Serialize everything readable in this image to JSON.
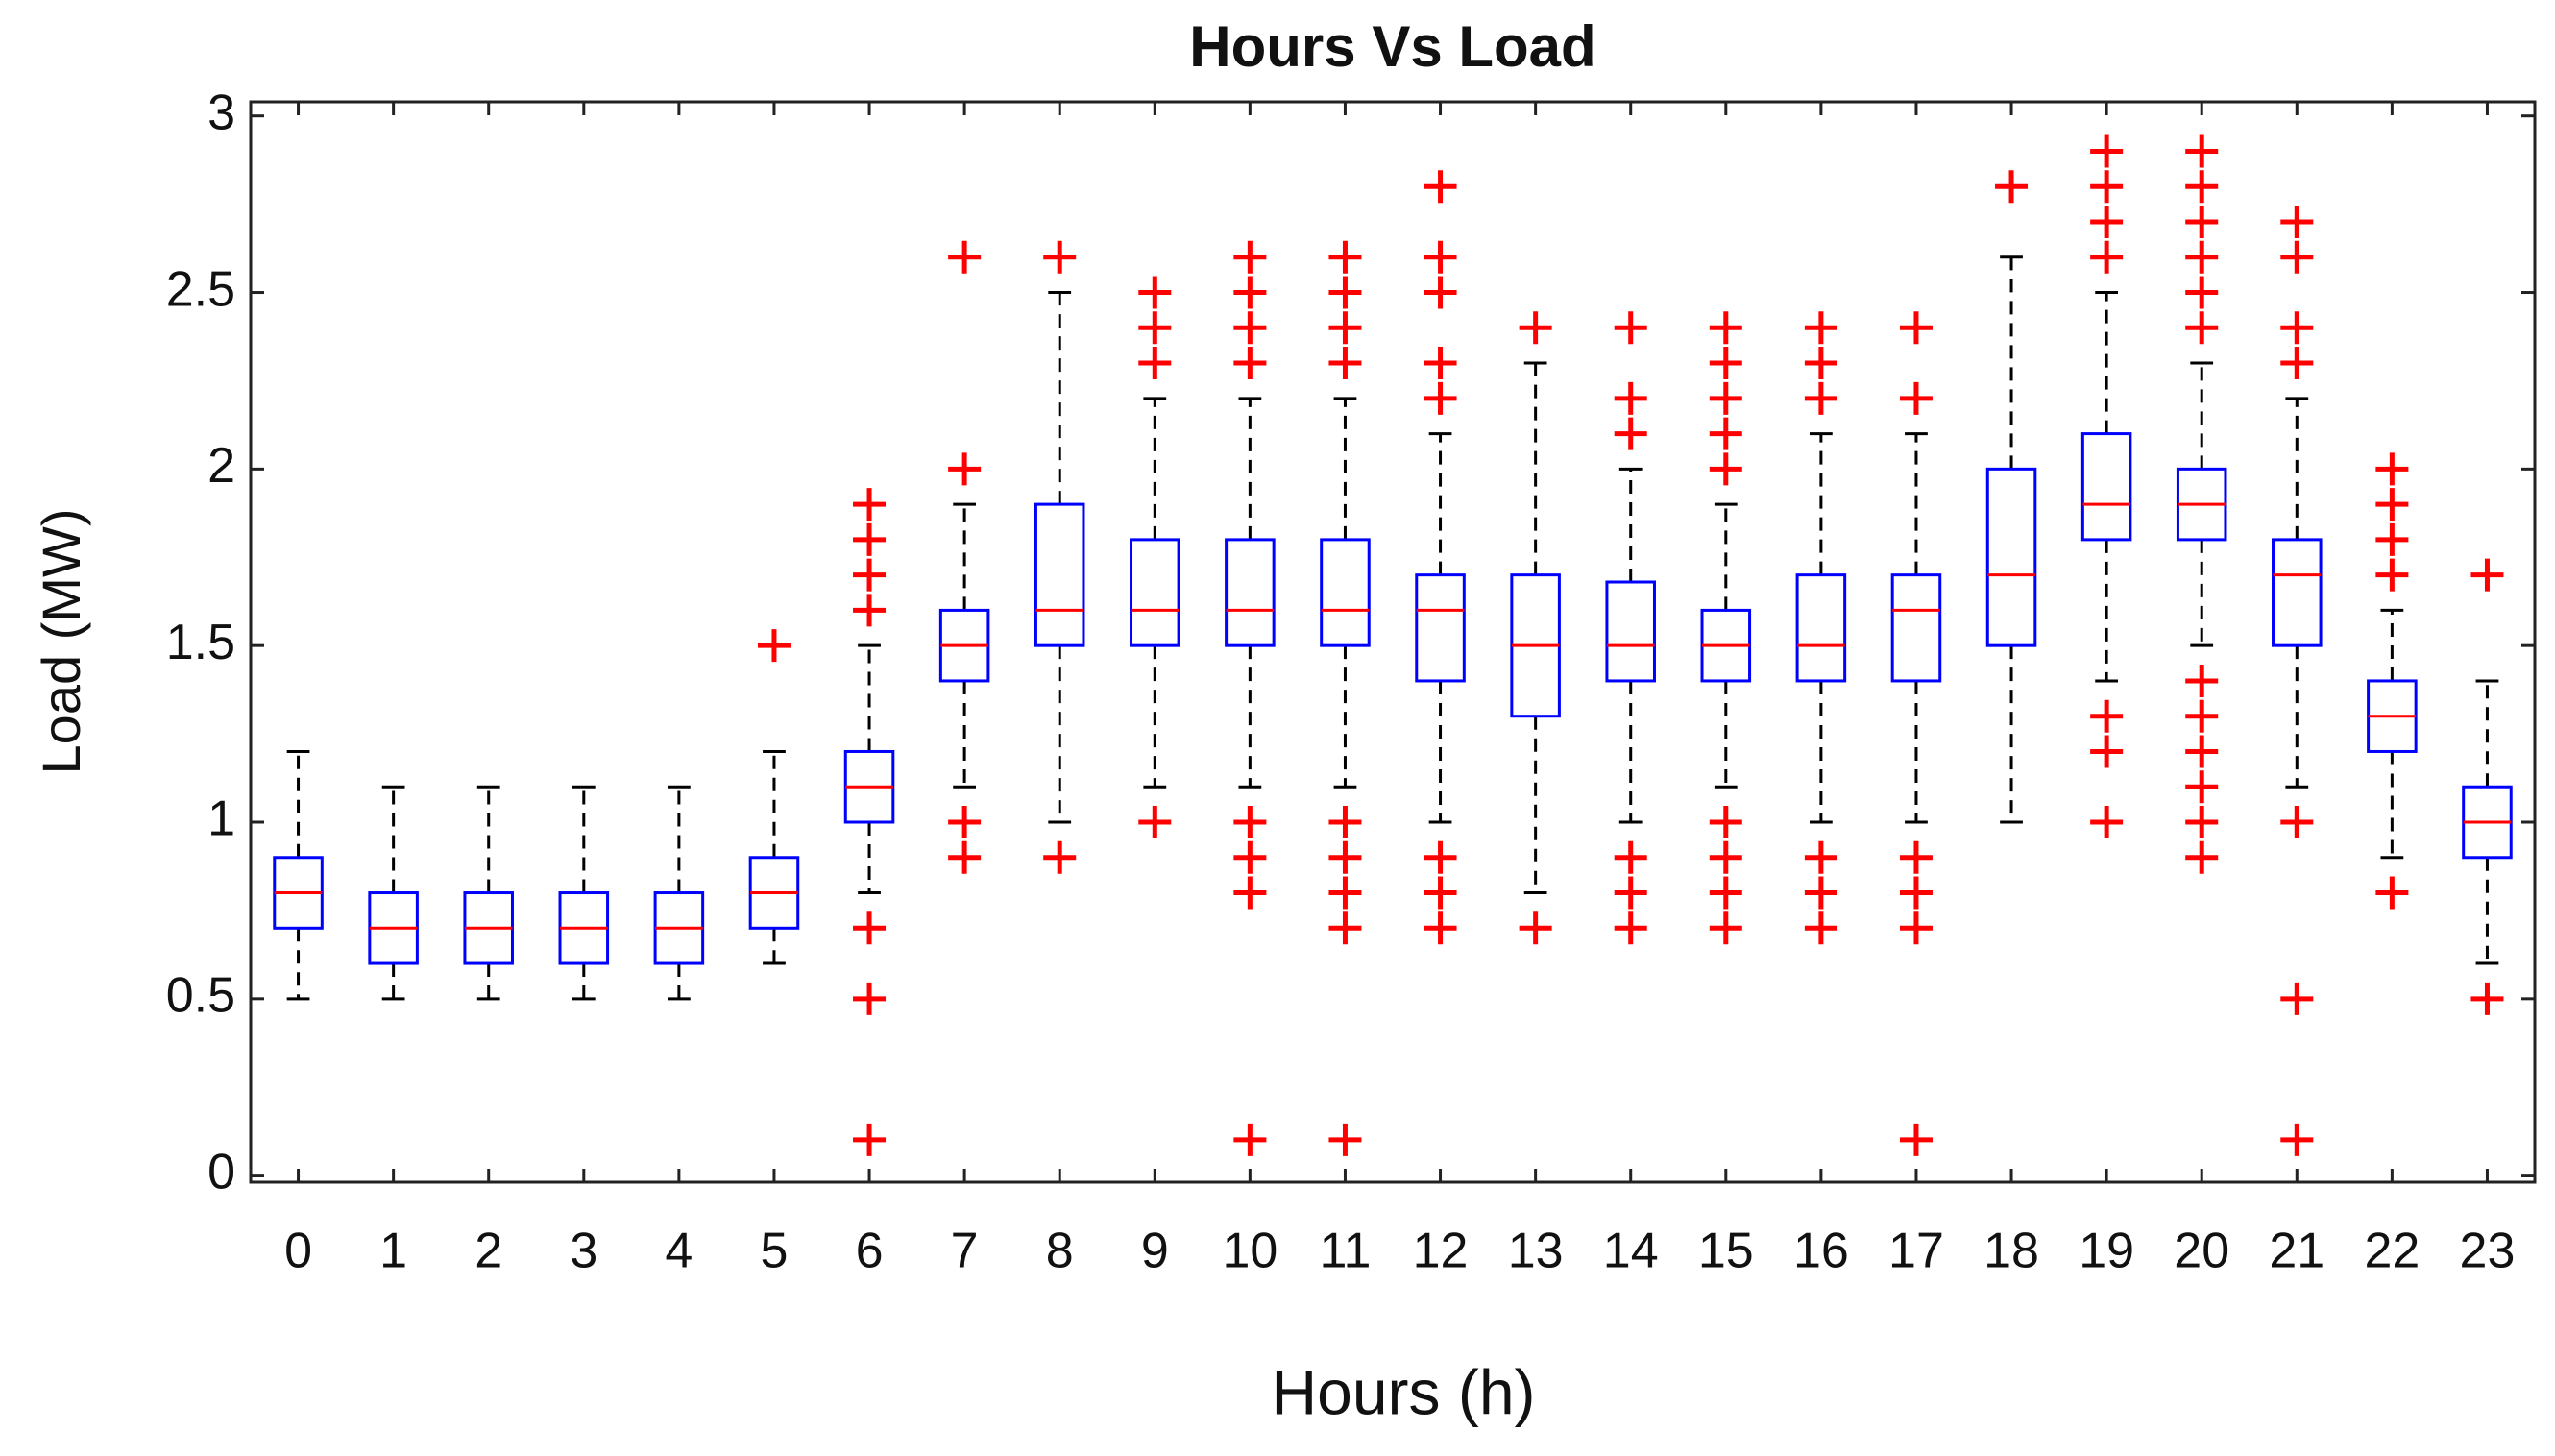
{
  "chart_data": {
    "type": "box",
    "title": "Hours Vs Load",
    "x_label": "Hours (h)",
    "y_label": "Load (MW)",
    "categories": [
      "0",
      "1",
      "2",
      "3",
      "4",
      "5",
      "6",
      "7",
      "8",
      "9",
      "10",
      "11",
      "12",
      "13",
      "14",
      "15",
      "16",
      "17",
      "18",
      "19",
      "20",
      "21",
      "22",
      "23"
    ],
    "boxes": [
      {
        "low": 0.5,
        "q1": 0.7,
        "median": 0.8,
        "q3": 0.9,
        "high": 1.2,
        "outliers": []
      },
      {
        "low": 0.5,
        "q1": 0.6,
        "median": 0.7,
        "q3": 0.8,
        "high": 1.1,
        "outliers": []
      },
      {
        "low": 0.5,
        "q1": 0.6,
        "median": 0.7,
        "q3": 0.8,
        "high": 1.1,
        "outliers": []
      },
      {
        "low": 0.5,
        "q1": 0.6,
        "median": 0.7,
        "q3": 0.8,
        "high": 1.1,
        "outliers": []
      },
      {
        "low": 0.5,
        "q1": 0.6,
        "median": 0.7,
        "q3": 0.8,
        "high": 1.1,
        "outliers": []
      },
      {
        "low": 0.6,
        "q1": 0.7,
        "median": 0.8,
        "q3": 0.9,
        "high": 1.2,
        "outliers": [
          1.5
        ]
      },
      {
        "low": 0.8,
        "q1": 1.0,
        "median": 1.1,
        "q3": 1.2,
        "high": 1.5,
        "outliers": [
          0.1,
          0.5,
          0.7,
          1.6,
          1.7,
          1.8,
          1.9
        ]
      },
      {
        "low": 1.1,
        "q1": 1.4,
        "median": 1.5,
        "q3": 1.6,
        "high": 1.9,
        "outliers": [
          0.9,
          1.0,
          2.0,
          2.6
        ]
      },
      {
        "low": 1.0,
        "q1": 1.5,
        "median": 1.6,
        "q3": 1.9,
        "high": 2.5,
        "outliers": [
          0.9,
          2.6
        ]
      },
      {
        "low": 1.1,
        "q1": 1.5,
        "median": 1.6,
        "q3": 1.8,
        "high": 2.2,
        "outliers": [
          1.0,
          2.3,
          2.4,
          2.5
        ]
      },
      {
        "low": 1.1,
        "q1": 1.5,
        "median": 1.6,
        "q3": 1.8,
        "high": 2.2,
        "outliers": [
          0.1,
          0.8,
          0.9,
          1.0,
          2.3,
          2.4,
          2.5,
          2.6
        ]
      },
      {
        "low": 1.1,
        "q1": 1.5,
        "median": 1.6,
        "q3": 1.8,
        "high": 2.2,
        "outliers": [
          0.1,
          0.7,
          0.8,
          0.9,
          1.0,
          2.3,
          2.4,
          2.5,
          2.6
        ]
      },
      {
        "low": 1.0,
        "q1": 1.4,
        "median": 1.6,
        "q3": 1.7,
        "high": 2.1,
        "outliers": [
          0.7,
          0.8,
          0.9,
          2.2,
          2.3,
          2.5,
          2.6,
          2.8
        ]
      },
      {
        "low": 0.8,
        "q1": 1.3,
        "median": 1.5,
        "q3": 1.7,
        "high": 2.3,
        "outliers": [
          0.7,
          2.4
        ]
      },
      {
        "low": 1.0,
        "q1": 1.4,
        "median": 1.5,
        "q3": 1.68,
        "high": 2.0,
        "outliers": [
          0.7,
          0.8,
          0.9,
          2.1,
          2.2,
          2.4
        ]
      },
      {
        "low": 1.1,
        "q1": 1.4,
        "median": 1.5,
        "q3": 1.6,
        "high": 1.9,
        "outliers": [
          0.7,
          0.8,
          0.9,
          1.0,
          2.0,
          2.1,
          2.2,
          2.3,
          2.4
        ]
      },
      {
        "low": 1.0,
        "q1": 1.4,
        "median": 1.5,
        "q3": 1.7,
        "high": 2.1,
        "outliers": [
          0.7,
          0.8,
          0.9,
          2.2,
          2.3,
          2.4
        ]
      },
      {
        "low": 1.0,
        "q1": 1.4,
        "median": 1.6,
        "q3": 1.7,
        "high": 2.1,
        "outliers": [
          0.1,
          0.7,
          0.8,
          0.9,
          2.2,
          2.4
        ]
      },
      {
        "low": 1.0,
        "q1": 1.5,
        "median": 1.7,
        "q3": 2.0,
        "high": 2.6,
        "outliers": [
          2.8
        ]
      },
      {
        "low": 1.4,
        "q1": 1.8,
        "median": 1.9,
        "q3": 2.1,
        "high": 2.5,
        "outliers": [
          1.0,
          1.2,
          1.3,
          2.6,
          2.7,
          2.8,
          2.9
        ]
      },
      {
        "low": 1.5,
        "q1": 1.8,
        "median": 1.9,
        "q3": 2.0,
        "high": 2.3,
        "outliers": [
          0.9,
          1.0,
          1.1,
          1.2,
          1.3,
          1.4,
          2.4,
          2.5,
          2.6,
          2.7,
          2.8,
          2.9
        ]
      },
      {
        "low": 1.1,
        "q1": 1.5,
        "median": 1.7,
        "q3": 1.8,
        "high": 2.2,
        "outliers": [
          0.1,
          0.5,
          1.0,
          2.3,
          2.4,
          2.6,
          2.7
        ]
      },
      {
        "low": 0.9,
        "q1": 1.2,
        "median": 1.3,
        "q3": 1.4,
        "high": 1.6,
        "outliers": [
          0.8,
          1.7,
          1.8,
          1.9,
          2.0
        ]
      },
      {
        "low": 0.6,
        "q1": 0.9,
        "median": 1.0,
        "q3": 1.1,
        "high": 1.4,
        "outliers": [
          0.5,
          1.7
        ]
      }
    ],
    "box_color": "#0000ff",
    "median_color": "#ff0000",
    "outlier_color": "#ff0000",
    "whisker_color": "#000000",
    "ylim": [
      -0.02,
      3.04
    ],
    "yticks": [
      0,
      0.5,
      1,
      1.5,
      2,
      2.5,
      3
    ]
  }
}
